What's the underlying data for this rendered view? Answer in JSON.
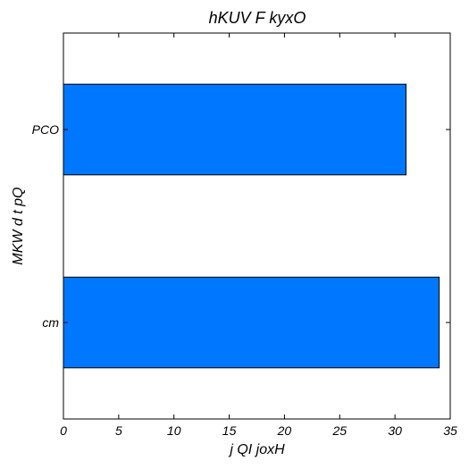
{
  "chart_data": {
    "type": "bar",
    "orientation": "horizontal",
    "title": "hKUV F kyxO",
    "xlabel": "j  QI joxH",
    "ylabel": "MKW d t pQ",
    "categories": [
      "PCO",
      "cm"
    ],
    "values": [
      31,
      34
    ],
    "xlim": [
      0,
      35
    ],
    "xticks": [
      0,
      5,
      10,
      15,
      20,
      25,
      30,
      35
    ],
    "bar_color": "#0077ff",
    "edge_color": "#000000",
    "grid": false
  }
}
